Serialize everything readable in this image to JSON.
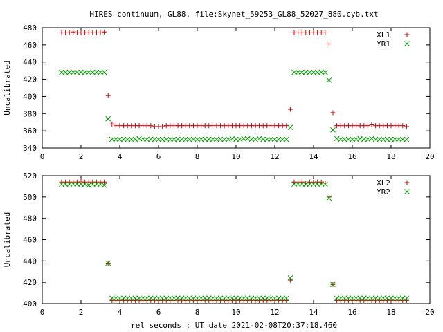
{
  "title": "HIRES continuum, GL88, file:Skynet_59253_GL88_52027_880.cyb.txt",
  "xlabel": "rel seconds : UT date 2021-02-08T20:37:18.460",
  "chart_data": [
    {
      "type": "scatter",
      "ylabel": "Uncalibrated",
      "xlim": [
        0,
        20
      ],
      "ylim": [
        340,
        480
      ],
      "xticks": [
        0,
        2,
        4,
        6,
        8,
        10,
        12,
        14,
        16,
        18,
        20
      ],
      "yticks": [
        340,
        360,
        380,
        400,
        420,
        440,
        460,
        480
      ],
      "legend_position": "top-right",
      "grid": false,
      "series": [
        {
          "name": "XL1",
          "marker": "plus",
          "color": "#cc0000",
          "x": [
            1.0,
            1.2,
            1.4,
            1.6,
            1.8,
            2.0,
            2.2,
            2.4,
            2.6,
            2.8,
            3.0,
            3.2,
            3.4,
            3.6,
            3.8,
            4.0,
            4.2,
            4.4,
            4.6,
            4.8,
            5.0,
            5.2,
            5.4,
            5.6,
            5.8,
            6.0,
            6.2,
            6.4,
            6.6,
            6.8,
            7.0,
            7.2,
            7.4,
            7.6,
            7.8,
            8.0,
            8.2,
            8.4,
            8.6,
            8.8,
            9.0,
            9.2,
            9.4,
            9.6,
            9.8,
            10.0,
            10.2,
            10.4,
            10.6,
            10.8,
            11.0,
            11.2,
            11.4,
            11.6,
            11.8,
            12.0,
            12.2,
            12.4,
            12.6,
            12.8,
            13.0,
            13.2,
            13.4,
            13.6,
            13.8,
            14.0,
            14.2,
            14.4,
            14.6,
            14.8,
            15.0,
            15.2,
            15.4,
            15.6,
            15.8,
            16.0,
            16.2,
            16.4,
            16.6,
            16.8,
            17.0,
            17.2,
            17.4,
            17.6,
            17.8,
            18.0,
            18.2,
            18.4,
            18.6,
            18.8
          ],
          "y": [
            474,
            474,
            474,
            475,
            474,
            474,
            474,
            474,
            474,
            474,
            474,
            475,
            401,
            368,
            366,
            366,
            366,
            366,
            366,
            366,
            366,
            366,
            366,
            366,
            365,
            365,
            365,
            366,
            366,
            366,
            366,
            366,
            366,
            366,
            366,
            366,
            366,
            366,
            366,
            366,
            366,
            366,
            366,
            366,
            366,
            366,
            366,
            366,
            366,
            366,
            366,
            366,
            366,
            366,
            366,
            366,
            366,
            366,
            366,
            385,
            474,
            474,
            474,
            474,
            474,
            474,
            474,
            474,
            474,
            461,
            381,
            366,
            366,
            366,
            366,
            366,
            366,
            366,
            366,
            366,
            367,
            366,
            366,
            366,
            366,
            366,
            366,
            366,
            366,
            365
          ]
        },
        {
          "name": "YR1",
          "marker": "cross",
          "color": "#00a000",
          "x": [
            1.0,
            1.2,
            1.4,
            1.6,
            1.8,
            2.0,
            2.2,
            2.4,
            2.6,
            2.8,
            3.0,
            3.2,
            3.4,
            3.6,
            3.8,
            4.0,
            4.2,
            4.4,
            4.6,
            4.8,
            5.0,
            5.2,
            5.4,
            5.6,
            5.8,
            6.0,
            6.2,
            6.4,
            6.6,
            6.8,
            7.0,
            7.2,
            7.4,
            7.6,
            7.8,
            8.0,
            8.2,
            8.4,
            8.6,
            8.8,
            9.0,
            9.2,
            9.4,
            9.6,
            9.8,
            10.0,
            10.2,
            10.4,
            10.6,
            10.8,
            11.0,
            11.2,
            11.4,
            11.6,
            11.8,
            12.0,
            12.2,
            12.4,
            12.6,
            12.8,
            13.0,
            13.2,
            13.4,
            13.6,
            13.8,
            14.0,
            14.2,
            14.4,
            14.6,
            14.8,
            15.0,
            15.2,
            15.4,
            15.6,
            15.8,
            16.0,
            16.2,
            16.4,
            16.6,
            16.8,
            17.0,
            17.2,
            17.4,
            17.6,
            17.8,
            18.0,
            18.2,
            18.4,
            18.6,
            18.8
          ],
          "y": [
            428,
            428,
            428,
            428,
            428,
            428,
            428,
            428,
            428,
            428,
            428,
            428,
            374,
            350,
            350,
            350,
            350,
            350,
            350,
            350,
            351,
            350,
            350,
            350,
            350,
            350,
            350,
            350,
            350,
            350,
            350,
            350,
            350,
            350,
            350,
            350,
            350,
            350,
            350,
            350,
            350,
            350,
            350,
            350,
            351,
            350,
            350,
            351,
            351,
            350,
            350,
            351,
            350,
            350,
            350,
            350,
            350,
            350,
            350,
            364,
            428,
            428,
            428,
            428,
            428,
            428,
            428,
            428,
            428,
            419,
            361,
            351,
            350,
            350,
            350,
            350,
            350,
            351,
            350,
            350,
            351,
            350,
            350,
            350,
            350,
            350,
            350,
            350,
            350,
            350
          ]
        }
      ]
    },
    {
      "type": "scatter",
      "ylabel": "Uncalibrated",
      "xlim": [
        0,
        20
      ],
      "ylim": [
        400,
        520
      ],
      "xticks": [
        0,
        2,
        4,
        6,
        8,
        10,
        12,
        14,
        16,
        18,
        20
      ],
      "yticks": [
        400,
        420,
        440,
        460,
        480,
        500,
        520
      ],
      "legend_position": "top-right",
      "grid": false,
      "series": [
        {
          "name": "XL2",
          "marker": "plus",
          "color": "#cc0000",
          "x": [
            1.0,
            1.2,
            1.4,
            1.6,
            1.8,
            2.0,
            2.2,
            2.4,
            2.6,
            2.8,
            3.0,
            3.2,
            3.4,
            3.6,
            3.8,
            4.0,
            4.2,
            4.4,
            4.6,
            4.8,
            5.0,
            5.2,
            5.4,
            5.6,
            5.8,
            6.0,
            6.2,
            6.4,
            6.6,
            6.8,
            7.0,
            7.2,
            7.4,
            7.6,
            7.8,
            8.0,
            8.2,
            8.4,
            8.6,
            8.8,
            9.0,
            9.2,
            9.4,
            9.6,
            9.8,
            10.0,
            10.2,
            10.4,
            10.6,
            10.8,
            11.0,
            11.2,
            11.4,
            11.6,
            11.8,
            12.0,
            12.2,
            12.4,
            12.6,
            12.8,
            13.0,
            13.2,
            13.4,
            13.6,
            13.8,
            14.0,
            14.2,
            14.4,
            14.6,
            14.8,
            15.0,
            15.2,
            15.4,
            15.6,
            15.8,
            16.0,
            16.2,
            16.4,
            16.6,
            16.8,
            17.0,
            17.2,
            17.4,
            17.6,
            17.8,
            18.0,
            18.2,
            18.4,
            18.6,
            18.8
          ],
          "y": [
            514,
            514,
            514,
            514,
            514,
            515,
            514,
            514,
            514,
            514,
            514,
            514,
            438,
            403,
            403,
            403,
            403,
            403,
            403,
            403,
            403,
            403,
            403,
            403,
            403,
            403,
            403,
            403,
            403,
            403,
            403,
            403,
            403,
            403,
            403,
            403,
            403,
            403,
            403,
            403,
            403,
            403,
            403,
            403,
            403,
            403,
            403,
            403,
            403,
            403,
            403,
            403,
            403,
            403,
            403,
            403,
            403,
            403,
            403,
            422,
            514,
            514,
            514,
            513,
            514,
            514,
            514,
            514,
            513,
            500,
            418,
            403,
            403,
            403,
            403,
            403,
            403,
            403,
            403,
            403,
            403,
            403,
            403,
            403,
            403,
            403,
            403,
            403,
            403,
            403
          ]
        },
        {
          "name": "YR2",
          "marker": "cross",
          "color": "#00a000",
          "x": [
            1.0,
            1.2,
            1.4,
            1.6,
            1.8,
            2.0,
            2.2,
            2.4,
            2.6,
            2.8,
            3.0,
            3.2,
            3.4,
            3.6,
            3.8,
            4.0,
            4.2,
            4.4,
            4.6,
            4.8,
            5.0,
            5.2,
            5.4,
            5.6,
            5.8,
            6.0,
            6.2,
            6.4,
            6.6,
            6.8,
            7.0,
            7.2,
            7.4,
            7.6,
            7.8,
            8.0,
            8.2,
            8.4,
            8.6,
            8.8,
            9.0,
            9.2,
            9.4,
            9.6,
            9.8,
            10.0,
            10.2,
            10.4,
            10.6,
            10.8,
            11.0,
            11.2,
            11.4,
            11.6,
            11.8,
            12.0,
            12.2,
            12.4,
            12.6,
            12.8,
            13.0,
            13.2,
            13.4,
            13.6,
            13.8,
            14.0,
            14.2,
            14.4,
            14.6,
            14.8,
            15.0,
            15.2,
            15.4,
            15.6,
            15.8,
            16.0,
            16.2,
            16.4,
            16.6,
            16.8,
            17.0,
            17.2,
            17.4,
            17.6,
            17.8,
            18.0,
            18.2,
            18.4,
            18.6,
            18.8
          ],
          "y": [
            512,
            512,
            512,
            512,
            512,
            512,
            512,
            511,
            512,
            512,
            512,
            511,
            438,
            405,
            405,
            405,
            405,
            405,
            405,
            405,
            405,
            405,
            405,
            405,
            405,
            405,
            405,
            405,
            405,
            405,
            405,
            405,
            405,
            405,
            405,
            405,
            405,
            405,
            405,
            405,
            405,
            405,
            405,
            405,
            405,
            405,
            405,
            405,
            405,
            405,
            405,
            405,
            405,
            405,
            405,
            405,
            405,
            405,
            405,
            424,
            512,
            512,
            512,
            512,
            512,
            512,
            512,
            512,
            512,
            499,
            418,
            405,
            405,
            405,
            405,
            405,
            405,
            405,
            405,
            405,
            405,
            405,
            405,
            405,
            405,
            405,
            405,
            405,
            405,
            405
          ]
        }
      ]
    }
  ]
}
